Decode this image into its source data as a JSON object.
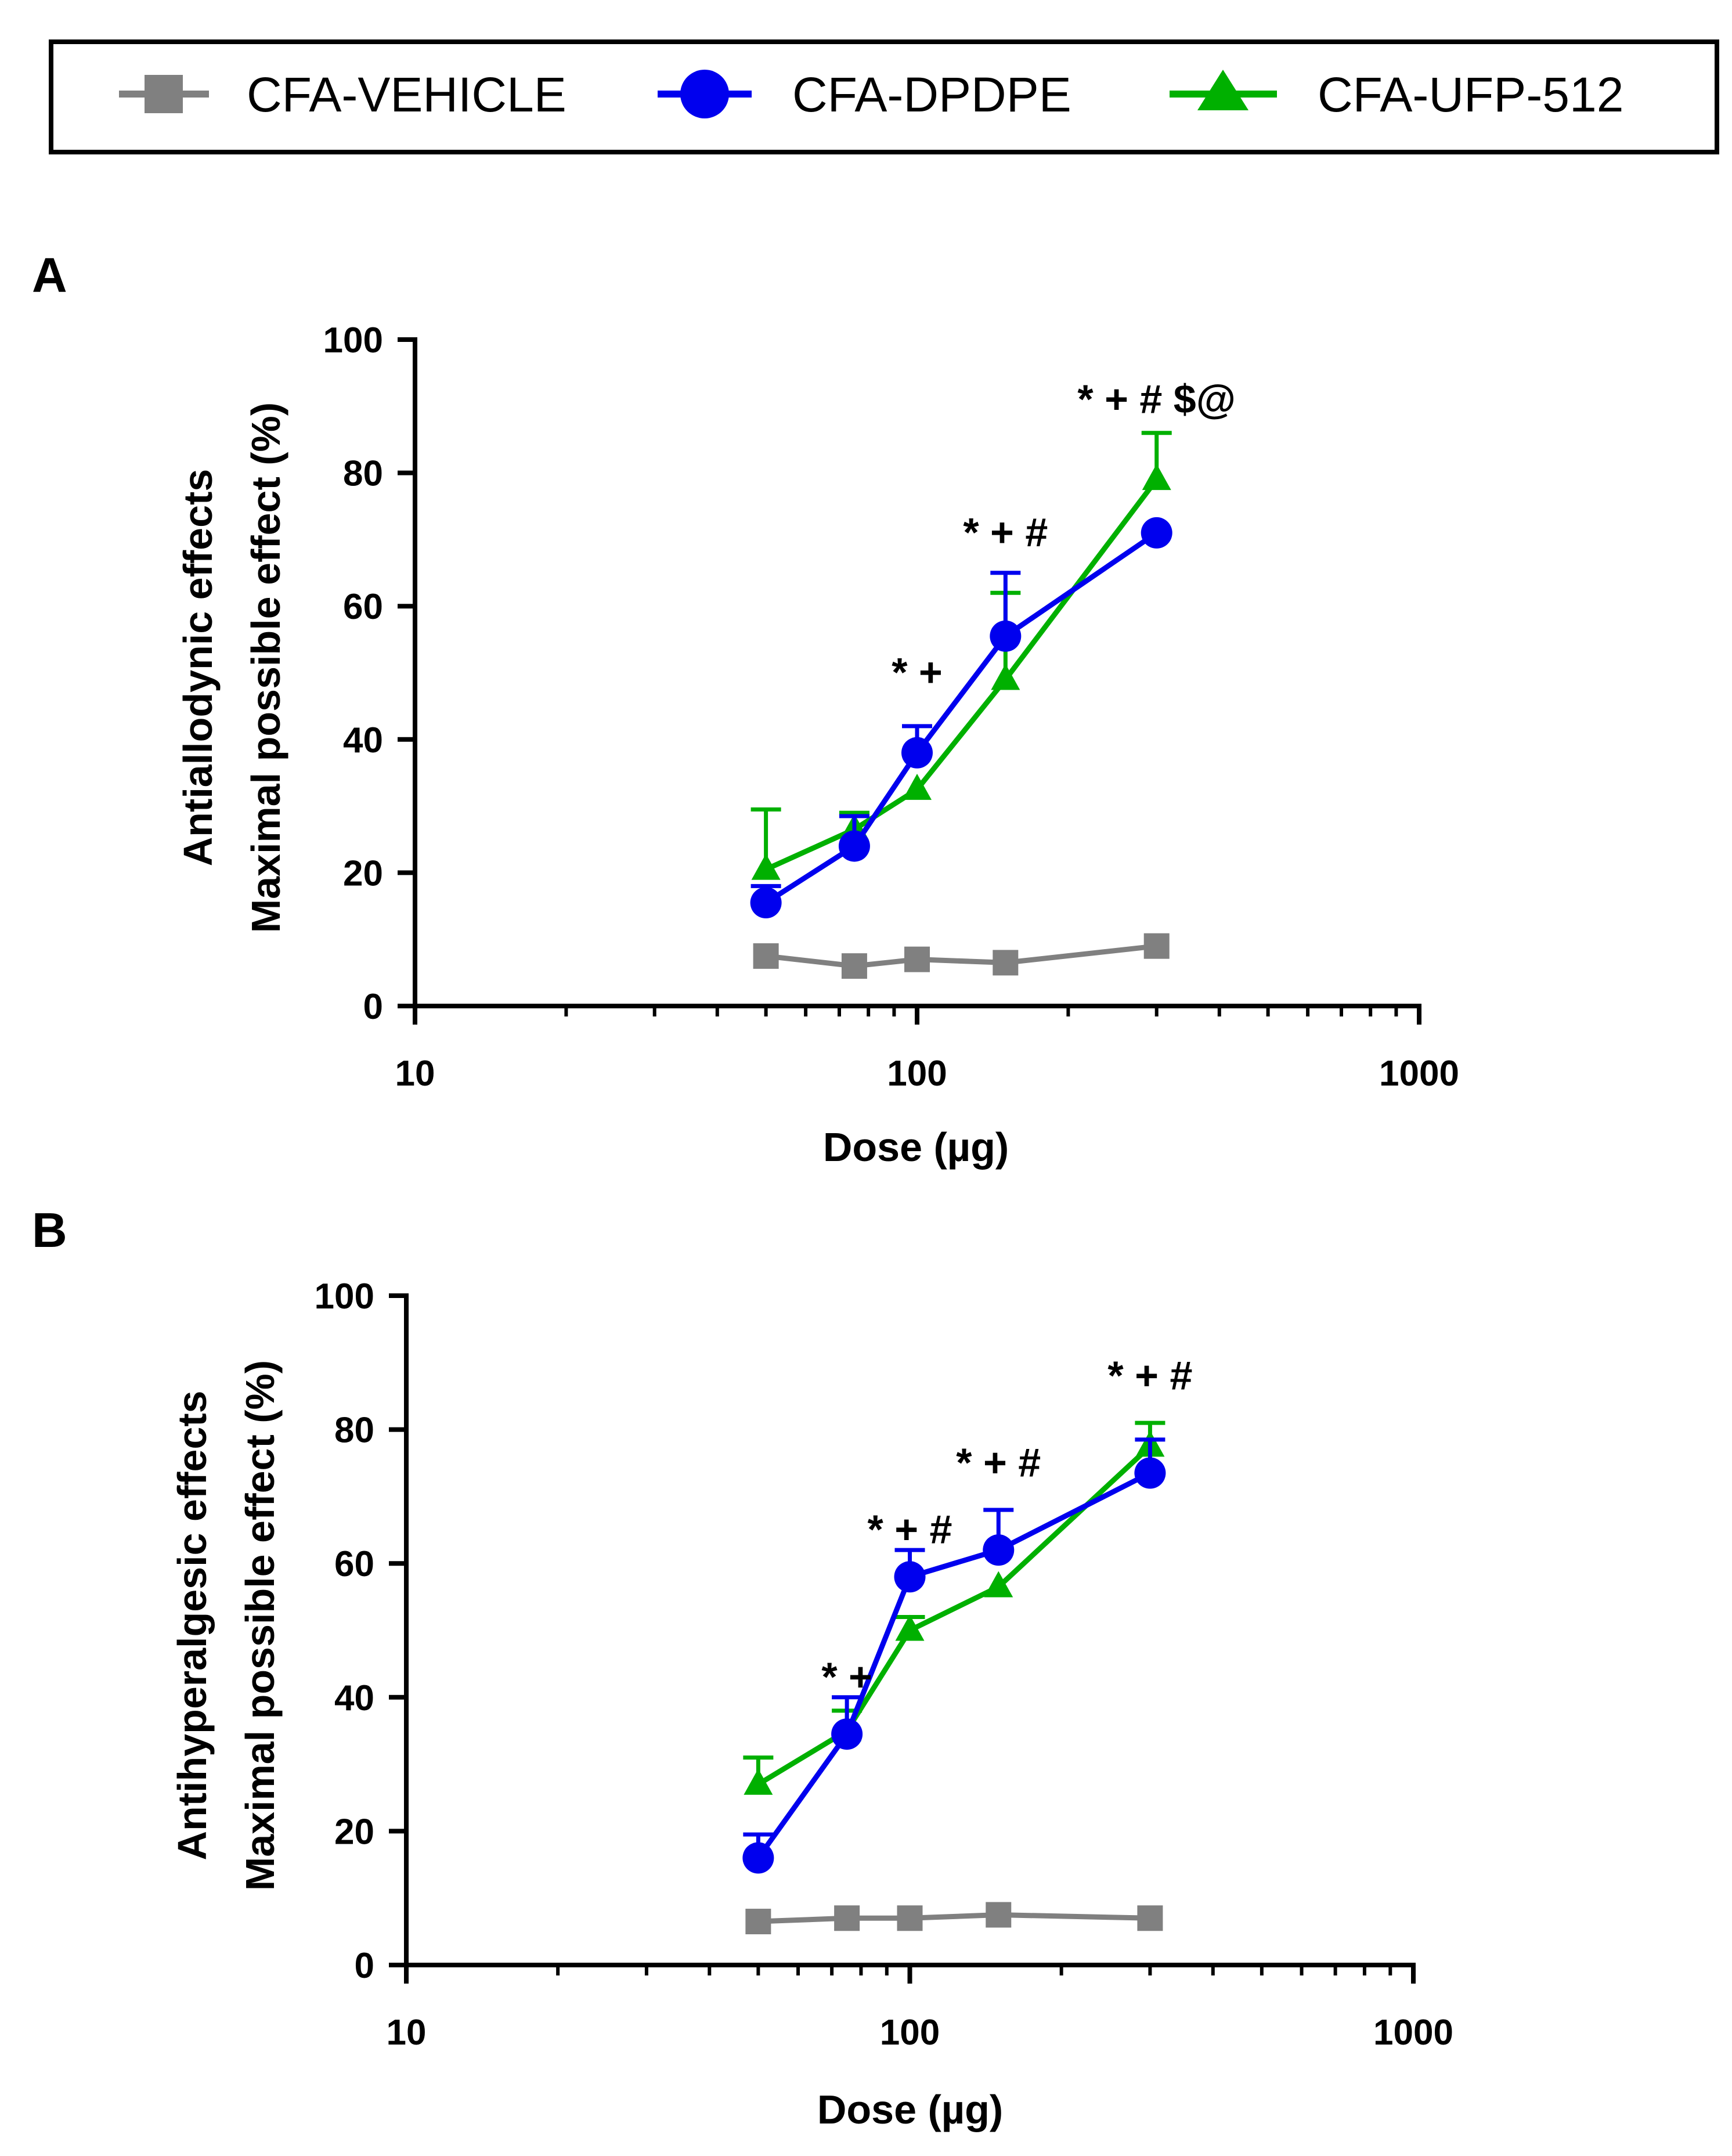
{
  "legend": {
    "entries": [
      {
        "label": "CFA-VEHICLE",
        "color": "#808080",
        "marker": "square"
      },
      {
        "label": "CFA-DPDPE",
        "color": "#0000ee",
        "marker": "circle"
      },
      {
        "label": "CFA-UFP-512",
        "color": "#00b000",
        "marker": "triangle"
      }
    ]
  },
  "chart_data": [
    {
      "type": "line",
      "panel_label": "A",
      "title": "",
      "xlabel": "Dose (µg)",
      "ylabel_lines": [
        "Antiallodynic effects",
        "Maximal possible effect (%)"
      ],
      "xscale": "log",
      "xlim": [
        10,
        1000
      ],
      "ylim": [
        0,
        100
      ],
      "x_ticks": [
        10,
        100,
        1000
      ],
      "x_tick_labels": [
        "10",
        "100",
        "1000"
      ],
      "y_ticks": [
        0,
        20,
        40,
        60,
        80,
        100
      ],
      "y_tick_labels": [
        "0",
        "20",
        "40",
        "60",
        "80",
        "100"
      ],
      "x": [
        50,
        75,
        100,
        150,
        300
      ],
      "series": [
        {
          "name": "CFA-VEHICLE",
          "values": [
            7.5,
            6,
            7,
            6.5,
            9
          ],
          "error": [
            0,
            0,
            0,
            0,
            0
          ]
        },
        {
          "name": "CFA-UFP-512",
          "values": [
            20.5,
            26.5,
            32.5,
            49,
            79
          ],
          "error": [
            9,
            2.5,
            0,
            13,
            7
          ]
        },
        {
          "name": "CFA-DPDPE",
          "values": [
            15.5,
            24,
            38,
            55.5,
            71
          ],
          "error": [
            2.5,
            4.5,
            4,
            9.5,
            0
          ]
        }
      ],
      "annotations": [
        {
          "x": 100,
          "y": 48,
          "text": "* +"
        },
        {
          "x": 150,
          "y": 69,
          "text": "* + #"
        },
        {
          "x": 300,
          "y": 89,
          "text": "* + # $@"
        }
      ]
    },
    {
      "type": "line",
      "panel_label": "B",
      "title": "",
      "xlabel": "Dose (µg)",
      "ylabel_lines": [
        "Antihyperalgesic effects",
        "Maximal possible effect (%)"
      ],
      "xscale": "log",
      "xlim": [
        10,
        1000
      ],
      "ylim": [
        0,
        100
      ],
      "x_ticks": [
        10,
        100,
        1000
      ],
      "x_tick_labels": [
        "10",
        "100",
        "1000"
      ],
      "y_ticks": [
        0,
        20,
        40,
        60,
        80,
        100
      ],
      "y_tick_labels": [
        "0",
        "20",
        "40",
        "60",
        "80",
        "100"
      ],
      "x": [
        50,
        75,
        100,
        150,
        300
      ],
      "series": [
        {
          "name": "CFA-VEHICLE",
          "values": [
            6.5,
            7,
            7,
            7.5,
            7
          ],
          "error": [
            0,
            0,
            0,
            0,
            0
          ]
        },
        {
          "name": "CFA-UFP-512",
          "values": [
            27,
            35,
            50,
            56.5,
            77.5
          ],
          "error": [
            4,
            3,
            2,
            0,
            3.5
          ]
        },
        {
          "name": "CFA-DPDPE",
          "values": [
            16,
            34.5,
            58,
            62,
            73.5
          ],
          "error": [
            3.5,
            5.5,
            4,
            6,
            5
          ]
        }
      ],
      "annotations": [
        {
          "x": 75,
          "y": 41,
          "text": "* +"
        },
        {
          "x": 100,
          "y": 63,
          "text": "* + #"
        },
        {
          "x": 150,
          "y": 73,
          "text": "* + #"
        },
        {
          "x": 300,
          "y": 86,
          "text": "* + #"
        }
      ]
    }
  ]
}
